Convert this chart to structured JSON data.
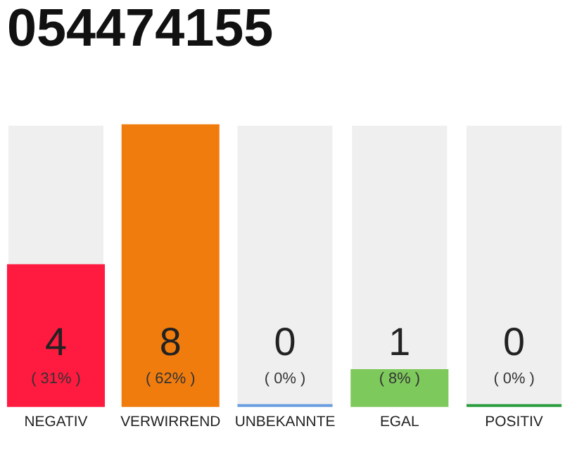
{
  "chart_data": {
    "type": "bar",
    "title": "054474155",
    "categories": [
      "NEGATIV",
      "VERWIRREND",
      "UNBEKANNTE",
      "EGAL",
      "POSITIV"
    ],
    "values": [
      4,
      8,
      0,
      1,
      0
    ],
    "colors": [
      "#ff1a40",
      "#f07c0e",
      "#6a9de0",
      "#7ec95c",
      "#2a9d3c"
    ],
    "value_labels": [
      "4",
      "8",
      "0",
      "1",
      "0"
    ],
    "annotations": [
      "( 31% )",
      "( 62% )",
      "( 0% )",
      "( 8% )",
      "( 0% )"
    ]
  }
}
